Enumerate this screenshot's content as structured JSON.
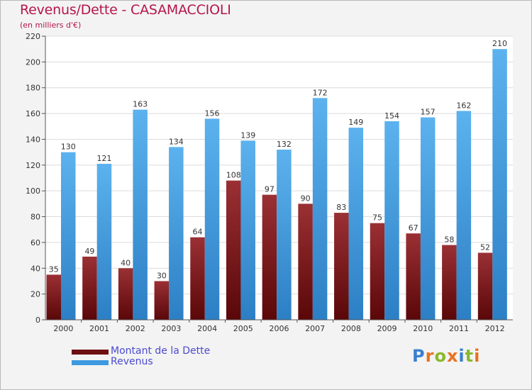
{
  "chart_data": {
    "type": "bar",
    "title": "Revenus/Dette - CASAMACCIOLI",
    "subtitle": "(en milliers d'€)",
    "categories": [
      "2000",
      "2001",
      "2002",
      "2003",
      "2004",
      "2005",
      "2006",
      "2007",
      "2008",
      "2009",
      "2010",
      "2011",
      "2012"
    ],
    "series": [
      {
        "name": "Montant de la Dette",
        "color": "#7a1518",
        "values": [
          35,
          49,
          40,
          30,
          64,
          108,
          97,
          90,
          83,
          75,
          67,
          58,
          52
        ]
      },
      {
        "name": "Revenus",
        "color": "#3d9ae0",
        "values": [
          130,
          121,
          163,
          134,
          156,
          139,
          132,
          172,
          149,
          154,
          157,
          162,
          210
        ]
      }
    ],
    "ylim": [
      0,
      220
    ],
    "yticks": [
      0,
      20,
      40,
      60,
      80,
      100,
      120,
      140,
      160,
      180,
      200,
      220
    ],
    "grid": true,
    "legend_position": "bottom-left"
  },
  "logo": {
    "text": "Proxiti",
    "letter_colors": [
      "#3a7fd0",
      "#e8731f",
      "#8ab82c",
      "#e8731f",
      "#3a7fd0",
      "#8ab82c",
      "#e8731f"
    ]
  }
}
